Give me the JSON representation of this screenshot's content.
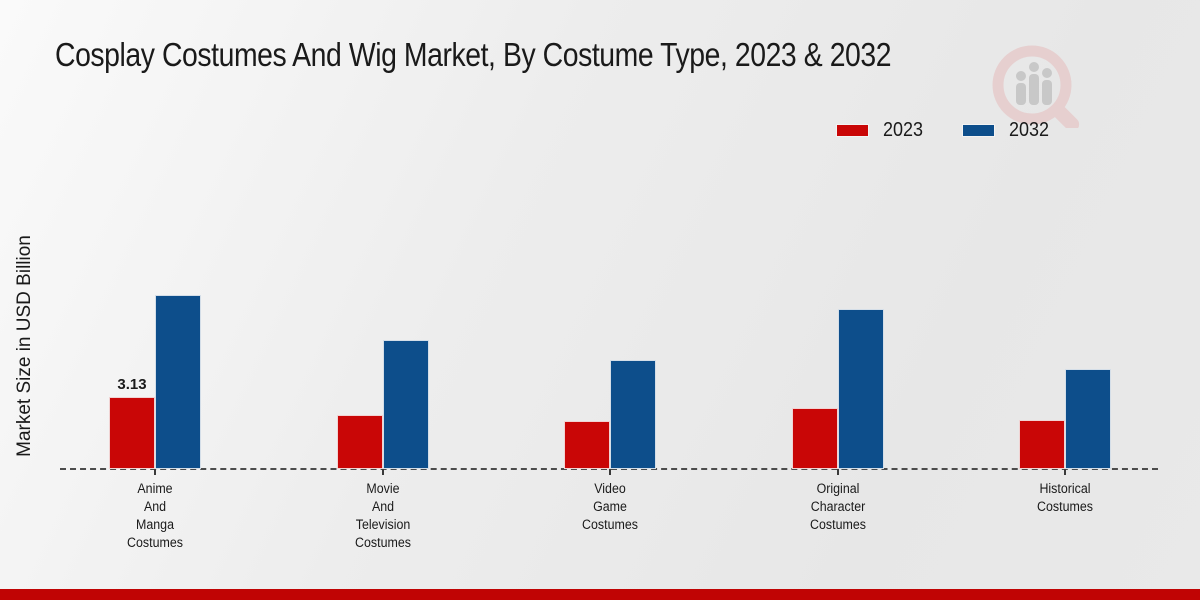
{
  "title": "Cosplay Costumes And Wig Market, By Costume Type, 2023 & 2032",
  "y_axis_title": "Market Size in USD Billion",
  "legend": {
    "items": [
      {
        "label": "2023"
      },
      {
        "label": "2032"
      }
    ]
  },
  "colors": {
    "series_2023": "#c90606",
    "series_2032": "#0d4e8b",
    "bottom_band": "#c00404",
    "baseline": "#4c4c4c",
    "text": "#1a1a1a"
  },
  "watermark": "magnifier-bars-logo",
  "chart_data": {
    "type": "bar",
    "categories": [
      "Anime\nAnd\nManga\nCostumes",
      "Movie\nAnd\nTelevision\nCostumes",
      "Video\nGame\nCostumes",
      "Original\nCharacter\nCostumes",
      "Historical\nCostumes"
    ],
    "series": [
      {
        "name": "2023",
        "color": "#c90606",
        "values": [
          3.13,
          2.35,
          2.09,
          2.65,
          2.13
        ]
      },
      {
        "name": "2032",
        "color": "#0d4e8b",
        "values": [
          7.56,
          5.61,
          4.74,
          6.96,
          4.35
        ]
      }
    ],
    "annotations": [
      {
        "series": "2023",
        "category_index": 0,
        "text": "3.13"
      }
    ],
    "title": "Cosplay Costumes And Wig Market, By Costume Type, 2023 & 2032",
    "xlabel": "",
    "ylabel": "Market Size in USD Billion",
    "ylim": [
      0,
      9
    ],
    "grid": false,
    "axis_line": "dashed-zero-line",
    "legend_position": "top-right"
  }
}
